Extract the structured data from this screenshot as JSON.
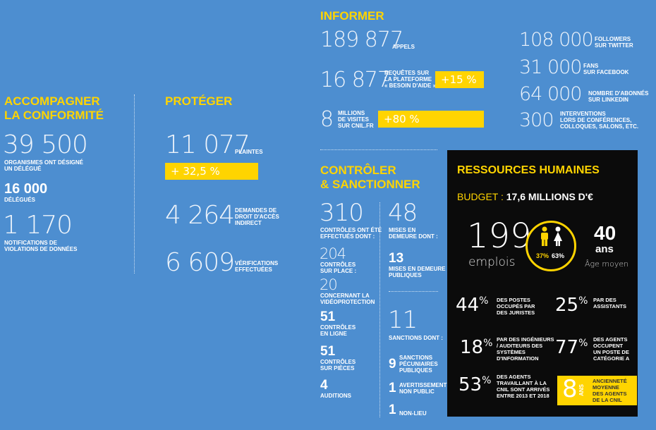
{
  "col1": {
    "title_line1": "ACCOMPAGNER",
    "title_line2": "LA CONFORMITÉ",
    "stat1_value": "39 500",
    "stat1_label_line1": "ORGANISMES ONT DÉSIGNÉ",
    "stat1_label_line2": "UN DÉLÉGUÉ",
    "stat2_value": "16 000",
    "stat2_label": "DÉLÉGUÉS",
    "stat3_value": "1 170",
    "stat3_label_line1": "NOTIFICATIONS DE",
    "stat3_label_line2": "VIOLATIONS DE DONNÉES"
  },
  "col2": {
    "title": "PROTÉGER",
    "stat1_value": "11 077",
    "stat1_label": "PLAINTES",
    "stat1_change": "+ 32,5 %",
    "stat2_value": "4 264",
    "stat2_label_line1": "DEMANDES DE",
    "stat2_label_line2": "DROIT D'ACCÈS",
    "stat2_label_line3": "INDIRECT",
    "stat3_value": "6 609",
    "stat3_label_line1": "VÉRIFICATIONS",
    "stat3_label_line2": "EFFECTUÉES"
  },
  "informer": {
    "title": "INFORMER",
    "calls_value": "189 877",
    "calls_label": "APPELS",
    "requests_value": "16 877",
    "requests_label_line1": "REQUÊTES SUR",
    "requests_label_line2": "LA PLATEFORME",
    "requests_label_line3": "« BESOIN D'AIDE »",
    "requests_change": "+15 %",
    "visits_value": "8",
    "visits_label_line1": "MILLIONS",
    "visits_label_line2": "DE VISITES",
    "visits_label_line3": "SUR CNIL.FR",
    "visits_change": "+80 %",
    "twitter_value": "108 000",
    "twitter_label_line1": "FOLLOWERS",
    "twitter_label_line2": "SUR TWITTER",
    "facebook_value": "31 000",
    "facebook_label_line1": "FANS",
    "facebook_label_line2": "SUR FACEBOOK",
    "linkedin_value": "64 000",
    "linkedin_label_line1": "NOMBRE D'ABONNÉS",
    "linkedin_label_line2": "SUR LINKEDIN",
    "interventions_value": "300",
    "interventions_label_line1": "INTERVENTIONS",
    "interventions_label_line2": "LORS DE CONFÉRENCES,",
    "interventions_label_line3": "COLLOQUES, SALONS, ETC."
  },
  "controler": {
    "title_line1": "CONTRÔLER",
    "title_line2": "& SANCTIONNER",
    "controls_value": "310",
    "controls_label_line1": "CONTRÔLES ONT ÉTÉ",
    "controls_label_line2": "EFFECTUÉS DONT :",
    "onsite_value": "204",
    "onsite_label_line1": "CONTRÔLES",
    "onsite_label_line2": "SUR PLACE :",
    "video_value": "20",
    "video_label_line1": "CONCERNANT LA",
    "video_label_line2": "VIDÉOPROTECTION",
    "online_value": "51",
    "online_label_line1": "CONTRÔLES",
    "online_label_line2": "EN LIGNE",
    "documents_value": "51",
    "documents_label_line1": "CONTRÔLES",
    "documents_label_line2": "SUR PIÈCES",
    "hearings_value": "4",
    "hearings_label": "AUDITIONS",
    "notices_value": "48",
    "notices_label_line1": "MISES EN",
    "notices_label_line2": "DEMEURE DONT :",
    "public_notices_value": "13",
    "public_notices_label_line1": "MISES EN DEMEURE",
    "public_notices_label_line2": "PUBLIQUES",
    "sanctions_value": "11",
    "sanctions_label": "SANCTIONS DONT :",
    "pecuniary_value": "9",
    "pecuniary_label_line1": "SANCTIONS",
    "pecuniary_label_line2": "PÉCUNIAIRES",
    "pecuniary_label_line3": "PUBLIQUES",
    "warning_value": "1",
    "warning_label_line1": "AVERTISSEMENT",
    "warning_label_line2": "NON PUBLIC",
    "nonlieu_value": "1",
    "nonlieu_label": "NON-LIEU"
  },
  "rh": {
    "title": "RESSOURCES HUMAINES",
    "budget_label": "BUDGET :",
    "budget_value": "17,6 MILLIONS D'€",
    "jobs_value": "199",
    "jobs_label": "emplois",
    "men_pct": "37%",
    "women_pct": "63%",
    "age_value": "40",
    "age_unit": "ans",
    "age_label": "Âge moyen",
    "s1_num": "44",
    "s1_label_line1": "DES POSTES",
    "s1_label_line2": "OCCUPÉS PAR",
    "s1_label_line3": "DES JURISTES",
    "s2_num": "25",
    "s2_label_line1": "PAR DES",
    "s2_label_line2": "ASSISTANTS",
    "s3_num": "18",
    "s3_label_line1": "PAR DES INGÉNIEURS",
    "s3_label_line2": "/ AUDITEURS DES",
    "s3_label_line3": "SYSTÈMES",
    "s3_label_line4": "D'INFORMATION",
    "s4_num": "77",
    "s4_label_line1": "DES AGENTS",
    "s4_label_line2": "OCCUPENT",
    "s4_label_line3": "UN POSTE DE",
    "s4_label_line4": "CATÉGORIE A",
    "s5_num": "53",
    "s5_label_line1": "DES AGENTS",
    "s5_label_line2": "TRAVAILLANT À LA",
    "s5_label_line3": "CNIL SONT ARRIVÉS",
    "s5_label_line4": "ENTRE 2013 ET 2018",
    "pct_sign": "%",
    "s6_num": "8",
    "s6_unit": "ANS",
    "s6_label_line1": "ANCIENNETÉ",
    "s6_label_line2": "MOYENNE",
    "s6_label_line3": "DES AGENTS",
    "s6_label_line4": "DE LA CNIL",
    "colors": {
      "yellow": "#ffd400",
      "black": "#0b0b0b",
      "blue": "#4d8ed0"
    }
  }
}
